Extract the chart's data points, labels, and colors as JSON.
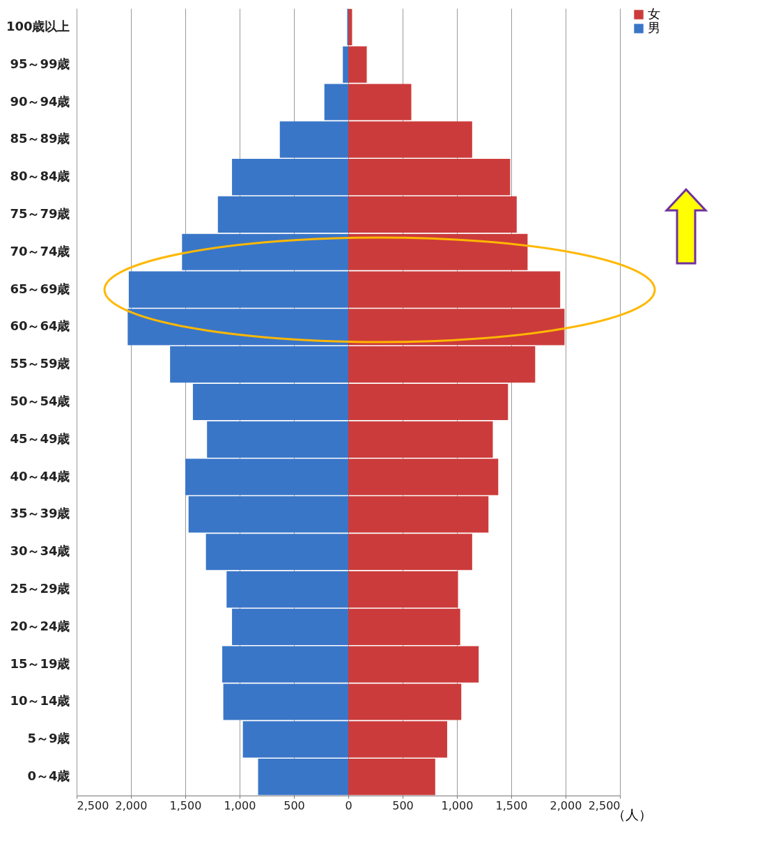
{
  "chart_data": {
    "type": "bar",
    "orientation": "horizontal",
    "xlabel": "（人）",
    "categories": [
      "100歳以上",
      "95～99歳",
      "90～94歳",
      "85～89歳",
      "80～84歳",
      "75～79歳",
      "70～74歳",
      "65～69歳",
      "60～64歳",
      "55～59歳",
      "50～54歳",
      "45～49歳",
      "40～44歳",
      "35～39歳",
      "30～34歳",
      "25～29歳",
      "20～24歳",
      "15～19歳",
      "10～14歳",
      "5～9歳",
      "0～4歳"
    ],
    "series": [
      {
        "name": "女",
        "color": "#cc3b3b",
        "values": [
          35,
          170,
          580,
          1140,
          1490,
          1550,
          1650,
          1950,
          1990,
          1720,
          1470,
          1330,
          1380,
          1290,
          1140,
          1010,
          1030,
          1200,
          1040,
          910,
          800
        ]
      },
      {
        "name": "男",
        "color": "#3a76c8",
        "values": [
          -10,
          -50,
          -220,
          -630,
          -1070,
          -1200,
          -1530,
          -2020,
          -2030,
          -1640,
          -1430,
          -1300,
          -1500,
          -1470,
          -1310,
          -1120,
          -1070,
          -1160,
          -1150,
          -970,
          -830
        ]
      }
    ],
    "xlim": [
      -2500,
      2500
    ],
    "xticks": [
      {
        "value": -2500,
        "label": "2,500"
      },
      {
        "value": -2000,
        "label": "2,000"
      },
      {
        "value": -1500,
        "label": "1,500"
      },
      {
        "value": -1000,
        "label": "1,000"
      },
      {
        "value": -500,
        "label": "500"
      },
      0,
      {
        "value": 500,
        "label": "500"
      },
      {
        "value": 1000,
        "label": "1,000"
      },
      {
        "value": 1500,
        "label": "1,500"
      },
      {
        "value": 2000,
        "label": "2,000"
      },
      {
        "value": 2500,
        "label": "2,500"
      }
    ],
    "grid": "x",
    "legend": "right",
    "stacked": true
  }
}
